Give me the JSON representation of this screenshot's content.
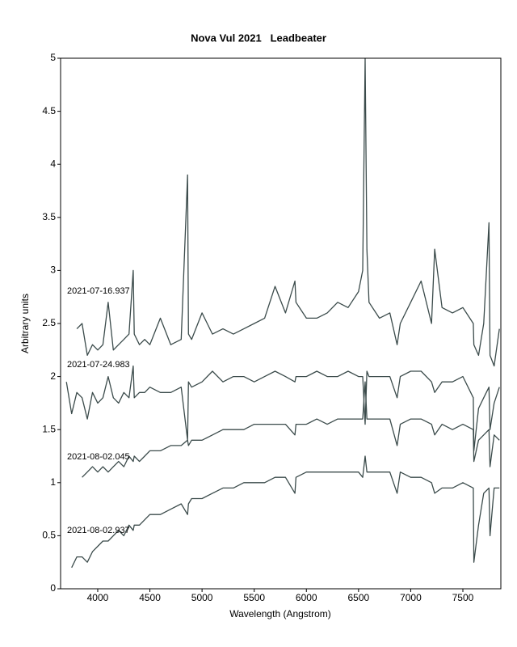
{
  "chart_data": {
    "type": "line",
    "title": "Nova Vul 2021   Leadbeater",
    "xlabel": "Wavelength (Angstrom)",
    "ylabel": "Arbitrary units",
    "xlim": [
      3644,
      7864
    ],
    "ylim": [
      0,
      5
    ],
    "xticks": [
      4000,
      4500,
      5000,
      5500,
      6000,
      6500,
      7000,
      7500
    ],
    "yticks": [
      0,
      0.5,
      1,
      1.5,
      2,
      2.5,
      3,
      3.5,
      4,
      4.5,
      5
    ],
    "grid": false,
    "x": [
      3700,
      3750,
      3800,
      3850,
      3900,
      3950,
      4000,
      4050,
      4100,
      4150,
      4200,
      4250,
      4300,
      4340,
      4350,
      4400,
      4450,
      4500,
      4600,
      4700,
      4800,
      4861,
      4870,
      4900,
      5000,
      5100,
      5200,
      5300,
      5400,
      5500,
      5600,
      5700,
      5800,
      5890,
      5900,
      6000,
      6100,
      6200,
      6300,
      6400,
      6500,
      6540,
      6563,
      6580,
      6600,
      6700,
      6800,
      6870,
      6900,
      7000,
      7100,
      7200,
      7230,
      7300,
      7400,
      7500,
      7600,
      7605,
      7650,
      7700,
      7750,
      7760,
      7800,
      7850
    ],
    "series": [
      {
        "name": "2021-07-16.937",
        "color": "#3b4b4b",
        "values": [
          null,
          null,
          2.45,
          2.5,
          2.2,
          2.3,
          2.25,
          2.3,
          2.7,
          2.25,
          2.3,
          2.35,
          2.4,
          3.0,
          2.4,
          2.3,
          2.35,
          2.3,
          2.55,
          2.3,
          2.35,
          3.9,
          2.4,
          2.35,
          2.6,
          2.4,
          2.45,
          2.4,
          2.45,
          2.5,
          2.55,
          2.85,
          2.6,
          2.9,
          2.7,
          2.55,
          2.55,
          2.6,
          2.7,
          2.65,
          2.8,
          3.0,
          5.0,
          3.2,
          2.7,
          2.55,
          2.6,
          2.3,
          2.5,
          2.7,
          2.9,
          2.5,
          3.2,
          2.65,
          2.6,
          2.65,
          2.5,
          2.3,
          2.2,
          2.5,
          3.45,
          2.2,
          2.1,
          2.45
        ]
      },
      {
        "name": "2021-07-24.983",
        "color": "#3b4b4b",
        "values": [
          1.95,
          1.65,
          1.85,
          1.8,
          1.6,
          1.85,
          1.75,
          1.8,
          2.0,
          1.8,
          1.75,
          1.85,
          1.8,
          2.1,
          1.8,
          1.85,
          1.85,
          1.9,
          1.85,
          1.85,
          1.9,
          1.4,
          1.95,
          1.9,
          1.95,
          2.05,
          1.95,
          2.0,
          2.0,
          1.95,
          2.0,
          2.05,
          2.0,
          1.95,
          2.0,
          2.0,
          2.05,
          2.0,
          2.0,
          2.05,
          2.0,
          2.0,
          1.55,
          2.05,
          2.0,
          2.0,
          2.0,
          1.8,
          2.0,
          2.05,
          2.05,
          1.95,
          1.85,
          1.95,
          1.95,
          2.0,
          1.8,
          1.3,
          1.7,
          1.8,
          1.9,
          1.5,
          1.75,
          1.9
        ]
      },
      {
        "name": "2021-08-02.045",
        "color": "#3b4b4b",
        "values": [
          null,
          null,
          null,
          1.05,
          1.1,
          1.15,
          1.1,
          1.15,
          1.1,
          1.15,
          1.2,
          1.15,
          1.25,
          1.2,
          1.25,
          1.2,
          1.25,
          1.3,
          1.3,
          1.35,
          1.35,
          1.4,
          1.35,
          1.4,
          1.4,
          1.45,
          1.5,
          1.5,
          1.5,
          1.55,
          1.55,
          1.55,
          1.55,
          1.45,
          1.55,
          1.55,
          1.6,
          1.55,
          1.6,
          1.6,
          1.6,
          1.6,
          1.95,
          1.6,
          1.6,
          1.6,
          1.6,
          1.35,
          1.55,
          1.6,
          1.6,
          1.55,
          1.45,
          1.55,
          1.5,
          1.55,
          1.5,
          1.2,
          1.4,
          1.45,
          1.5,
          1.15,
          1.45,
          1.4
        ]
      },
      {
        "name": "2021-08-02.937",
        "color": "#3b4b4b",
        "values": [
          null,
          0.2,
          0.3,
          0.3,
          0.25,
          0.35,
          0.4,
          0.45,
          0.45,
          0.5,
          0.55,
          0.5,
          0.6,
          0.55,
          0.6,
          0.6,
          0.65,
          0.7,
          0.7,
          0.75,
          0.8,
          0.7,
          0.8,
          0.85,
          0.85,
          0.9,
          0.95,
          0.95,
          1.0,
          1.0,
          1.0,
          1.05,
          1.05,
          0.9,
          1.05,
          1.1,
          1.1,
          1.1,
          1.1,
          1.1,
          1.1,
          1.05,
          1.25,
          1.1,
          1.1,
          1.1,
          1.1,
          0.9,
          1.1,
          1.05,
          1.05,
          1.0,
          0.9,
          0.95,
          0.95,
          1.0,
          0.95,
          0.25,
          0.6,
          0.9,
          0.95,
          0.5,
          0.95,
          0.95
        ]
      }
    ]
  }
}
